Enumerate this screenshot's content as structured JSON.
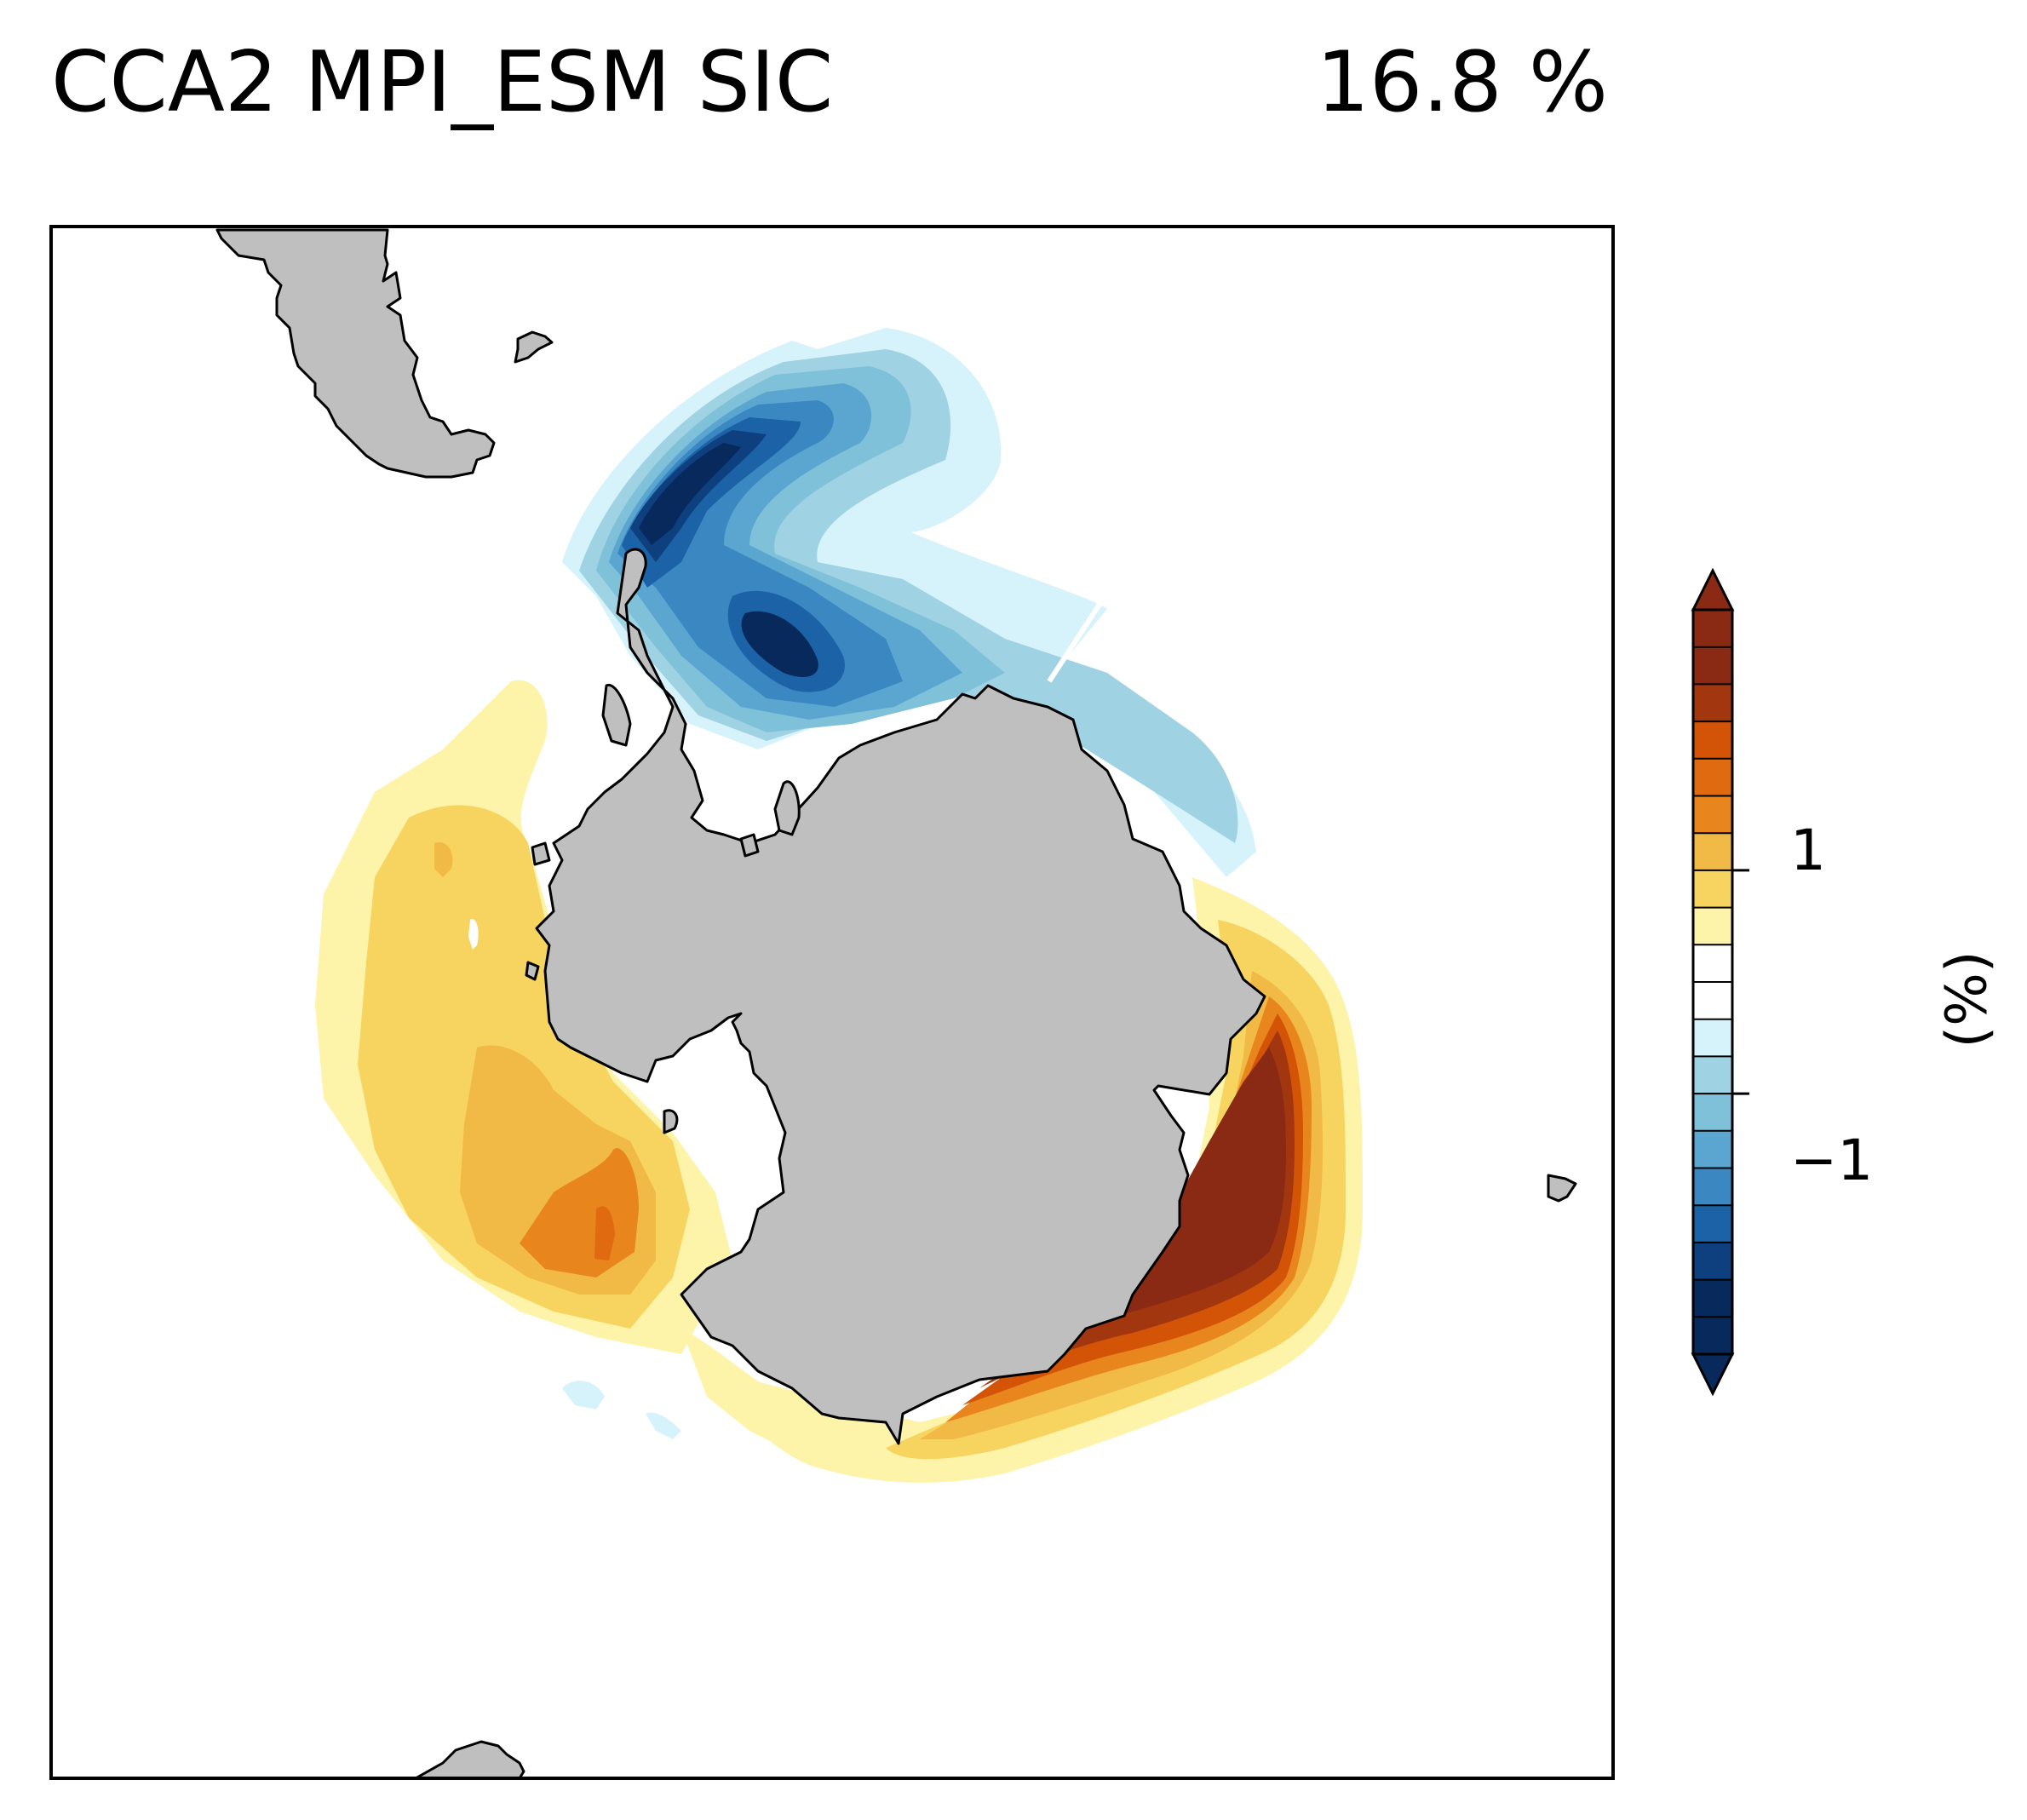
{
  "title": {
    "left": "CCA2 MPI_ESM SIC",
    "right": "16.8 %"
  },
  "colorbar": {
    "label": "(%)",
    "ticks": [
      {
        "label": "1",
        "value": 1
      },
      {
        "label": "−1",
        "value": -1
      }
    ],
    "colors_top_to_bottom": [
      "#8b2a14",
      "#8b2a14",
      "#a2360f",
      "#d35407",
      "#e06a10",
      "#e8851d",
      "#f1b945",
      "#f7d35f",
      "#fdf3a9",
      "#ffffff",
      "#ffffff",
      "#d6f3fb",
      "#9fd3e4",
      "#80c1da",
      "#5ba6d0",
      "#3a87c1",
      "#1b62a6",
      "#0e3f7e",
      "#08295c",
      "#08295c"
    ]
  },
  "map": {
    "projection": "south-polar-stereographic",
    "variable": "SIC",
    "land_color": "#bfbfbf",
    "anomaly_regions": [
      {
        "sector": "weddell-sea-drake",
        "sign": "negative",
        "max_level": "<-1"
      },
      {
        "sector": "ross-amundsen-bellingshausen",
        "sign": "positive",
        "max_level": "~1"
      },
      {
        "sector": "east-antarctica-indian",
        "sign": "positive",
        "max_level": ">1"
      }
    ]
  }
}
